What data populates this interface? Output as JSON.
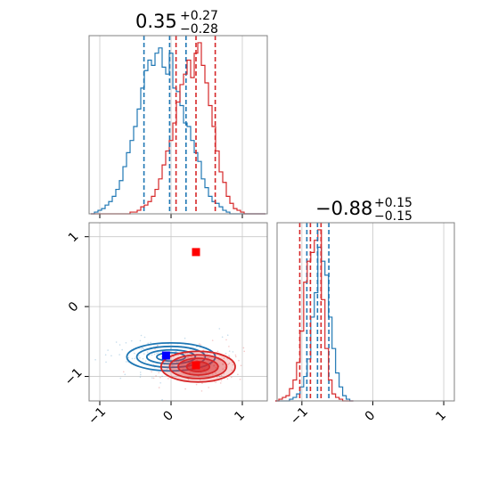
{
  "panel_titles": [
    {
      "value": "0.35",
      "plus": "+0.27",
      "minus": "−0.28"
    },
    {
      "value": "−0.88",
      "plus": "+0.15",
      "minus": "−0.15"
    }
  ],
  "colors": {
    "series_a": "#1f77b4",
    "series_b": "#d62728",
    "truth_a": "#0000ff",
    "truth_b": "#ff0000",
    "grid": "#c8c8c8",
    "frame": "#808080"
  },
  "chart_data": [
    {
      "type": "histogram",
      "panel": "marginal-x",
      "grid": true,
      "xlim": [
        -1.15,
        1.35
      ],
      "x_ticks": [
        "−1",
        "0",
        "1"
      ],
      "series": [
        {
          "color": "#1f77b4",
          "bins_x": [
            -1.1,
            -1.05,
            -1.0,
            -0.95,
            -0.9,
            -0.85,
            -0.8,
            -0.75,
            -0.7,
            -0.65,
            -0.6,
            -0.55,
            -0.5,
            -0.45,
            -0.4,
            -0.35,
            -0.3,
            -0.25,
            -0.2,
            -0.15,
            -0.1,
            -0.05,
            0.0,
            0.05,
            0.1,
            0.15,
            0.2,
            0.25,
            0.3,
            0.35,
            0.4,
            0.45,
            0.5,
            0.55,
            0.6,
            0.65,
            0.7,
            0.75,
            0.8,
            0.85,
            0.9,
            0.95,
            1.0,
            1.05,
            1.1,
            1.15,
            1.2,
            1.25,
            1.3
          ],
          "counts": [
            0.0,
            0.01,
            0.02,
            0.03,
            0.05,
            0.07,
            0.1,
            0.14,
            0.19,
            0.27,
            0.35,
            0.42,
            0.5,
            0.6,
            0.72,
            0.82,
            0.88,
            0.85,
            0.92,
            0.95,
            0.84,
            0.8,
            0.92,
            0.72,
            0.7,
            0.62,
            0.52,
            0.5,
            0.42,
            0.35,
            0.3,
            0.2,
            0.15,
            0.1,
            0.07,
            0.06,
            0.04,
            0.02,
            0.01,
            0.0,
            0.0,
            0.0,
            0.0,
            0.0,
            0.0,
            0.0,
            0.0,
            0.0,
            0.0
          ],
          "quantiles": [
            -0.38,
            0.21
          ]
        },
        {
          "color": "#d62728",
          "bins_x": [
            -1.1,
            -1.05,
            -1.0,
            -0.95,
            -0.9,
            -0.85,
            -0.8,
            -0.75,
            -0.7,
            -0.65,
            -0.6,
            -0.55,
            -0.5,
            -0.45,
            -0.4,
            -0.35,
            -0.3,
            -0.25,
            -0.2,
            -0.15,
            -0.1,
            -0.05,
            0.0,
            0.05,
            0.1,
            0.15,
            0.2,
            0.25,
            0.3,
            0.35,
            0.4,
            0.45,
            0.5,
            0.55,
            0.6,
            0.65,
            0.7,
            0.75,
            0.8,
            0.85,
            0.9,
            0.95,
            1.0,
            1.05,
            1.1,
            1.15,
            1.2,
            1.25,
            1.3
          ],
          "counts": [
            0.0,
            0.0,
            0.0,
            0.0,
            0.0,
            0.0,
            0.0,
            0.0,
            0.0,
            0.0,
            0.0,
            0.01,
            0.01,
            0.02,
            0.04,
            0.05,
            0.07,
            0.1,
            0.14,
            0.2,
            0.28,
            0.36,
            0.42,
            0.52,
            0.64,
            0.74,
            0.8,
            0.88,
            0.78,
            0.92,
            0.98,
            0.85,
            0.75,
            0.62,
            0.5,
            0.36,
            0.24,
            0.18,
            0.1,
            0.06,
            0.03,
            0.02,
            0.01,
            0.0,
            0.0,
            0.0,
            0.0,
            0.0,
            0.0
          ],
          "quantiles": [
            0.07,
            0.35,
            0.62
          ]
        }
      ],
      "extra_line": {
        "color": "#1f77b4",
        "x": -0.02
      }
    },
    {
      "type": "histogram",
      "panel": "marginal-y",
      "grid": true,
      "xlim": [
        -1.35,
        1.15
      ],
      "x_ticks": [
        "−1",
        "0",
        "1"
      ],
      "series": [
        {
          "color": "#1f77b4",
          "bins_x": [
            -1.35,
            -1.3,
            -1.25,
            -1.2,
            -1.15,
            -1.1,
            -1.05,
            -1.0,
            -0.95,
            -0.9,
            -0.85,
            -0.8,
            -0.75,
            -0.7,
            -0.65,
            -0.6,
            -0.55,
            -0.5,
            -0.45,
            -0.4,
            -0.35,
            -0.3
          ],
          "counts": [
            0.0,
            0.0,
            0.0,
            0.0,
            0.01,
            0.02,
            0.04,
            0.08,
            0.14,
            0.24,
            0.48,
            0.62,
            0.88,
            0.8,
            0.72,
            0.48,
            0.3,
            0.16,
            0.08,
            0.03,
            0.01,
            0.0
          ],
          "quantiles": [
            -0.93,
            -0.62
          ]
        },
        {
          "color": "#d62728",
          "bins_x": [
            -1.35,
            -1.3,
            -1.25,
            -1.2,
            -1.15,
            -1.1,
            -1.05,
            -1.0,
            -0.95,
            -0.9,
            -0.85,
            -0.8,
            -0.75,
            -0.7,
            -0.65,
            -0.6,
            -0.55,
            -0.5,
            -0.45,
            -0.4,
            -0.35,
            -0.3
          ],
          "counts": [
            0.0,
            0.01,
            0.02,
            0.03,
            0.07,
            0.12,
            0.22,
            0.4,
            0.68,
            0.8,
            0.85,
            0.92,
            0.98,
            0.58,
            0.3,
            0.12,
            0.04,
            0.02,
            0.01,
            0.0,
            0.0,
            0.0
          ],
          "quantiles": [
            -1.03,
            -0.88,
            -0.73
          ]
        }
      ],
      "extra_line": {
        "color": "#1f77b4",
        "x": -0.78
      }
    },
    {
      "type": "scatter",
      "panel": "joint",
      "grid": true,
      "xlim": [
        -1.15,
        1.35
      ],
      "ylim": [
        -1.35,
        1.2
      ],
      "x_ticks": [
        "−1",
        "0",
        "1"
      ],
      "y_ticks": [
        "−1",
        "0",
        "1"
      ],
      "contours": [
        {
          "color": "#1f77b4",
          "filled": false,
          "cx": 0.0,
          "cy": -0.72,
          "levels": [
            [
              0.62,
              0.2
            ],
            [
              0.48,
              0.15
            ],
            [
              0.34,
              0.1
            ],
            [
              0.2,
              0.06
            ]
          ]
        },
        {
          "color": "#d62728",
          "filled": true,
          "cx": 0.38,
          "cy": -0.86,
          "levels": [
            [
              0.52,
              0.22
            ],
            [
              0.4,
              0.17
            ],
            [
              0.28,
              0.12
            ],
            [
              0.16,
              0.07
            ]
          ]
        }
      ],
      "truth_points": [
        {
          "x": -0.07,
          "y": -0.7,
          "color": "#0000ff"
        },
        {
          "x": 0.35,
          "y": 0.78,
          "color": "#ff0000"
        },
        {
          "x": 0.35,
          "y": -0.84,
          "color": "#ff0000"
        }
      ]
    }
  ]
}
